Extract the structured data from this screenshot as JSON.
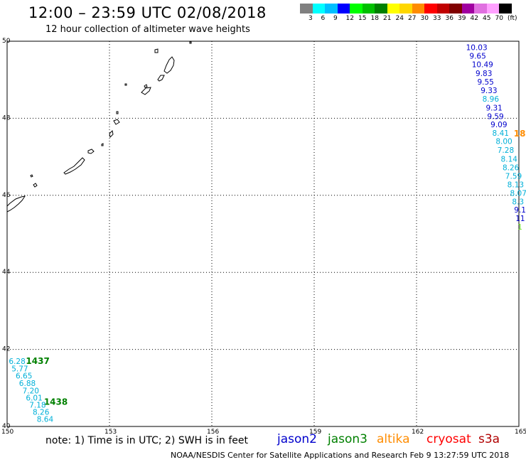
{
  "header": {
    "title": "12:00 – 23:59 UTC 02/08/2018",
    "subtitle": "12 hour collection of altimeter wave heights"
  },
  "color_scale": {
    "colors": [
      "#808080",
      "#00ffff",
      "#00bfff",
      "#0000ff",
      "#00ff00",
      "#00c000",
      "#008000",
      "#ffff00",
      "#ffd700",
      "#ff8c00",
      "#ff0000",
      "#c00000",
      "#800000",
      "#a000a0",
      "#e070e0",
      "#ffa0ff",
      "#000000"
    ],
    "labels": [
      "3",
      "6",
      "9",
      "12",
      "15",
      "18",
      "21",
      "24",
      "27",
      "30",
      "33",
      "36",
      "39",
      "42",
      "45",
      "70",
      "(ft)"
    ]
  },
  "map": {
    "lon_range": [
      150,
      165
    ],
    "lat_range": [
      40,
      50
    ],
    "lon_ticks": [
      "150",
      "153",
      "156",
      "159",
      "162",
      "165"
    ],
    "lat_ticks": [
      "50",
      "48",
      "46",
      "44",
      "42",
      "40"
    ]
  },
  "colors": {
    "jason2": "#0000cc",
    "jason3": "#008000",
    "altika": "#ff8c00",
    "cryosat": "#ff0000",
    "s3a": "#b00000",
    "cyan_value": "#00b0d8",
    "lime_value": "#66dd22"
  },
  "tracks": [
    {
      "lon": 163.45,
      "lat": 49.77,
      "value": "10.03",
      "color": "jason2"
    },
    {
      "lon": 163.55,
      "lat": 49.55,
      "value": "9.65",
      "color": "jason2"
    },
    {
      "lon": 163.62,
      "lat": 49.33,
      "value": "10.49",
      "color": "jason2"
    },
    {
      "lon": 163.73,
      "lat": 49.1,
      "value": "9.83",
      "color": "jason2"
    },
    {
      "lon": 163.78,
      "lat": 48.87,
      "value": "9.55",
      "color": "jason2"
    },
    {
      "lon": 163.88,
      "lat": 48.65,
      "value": "9.33",
      "color": "jason2"
    },
    {
      "lon": 163.93,
      "lat": 48.43,
      "value": "8.96",
      "color": "cyan_value"
    },
    {
      "lon": 164.03,
      "lat": 48.2,
      "value": "9.31",
      "color": "jason2"
    },
    {
      "lon": 164.07,
      "lat": 47.98,
      "value": "9.59",
      "color": "jason2"
    },
    {
      "lon": 164.17,
      "lat": 47.77,
      "value": "9.09",
      "color": "jason2"
    },
    {
      "lon": 164.22,
      "lat": 47.55,
      "value": "8.41",
      "color": "cyan_value"
    },
    {
      "lon": 164.32,
      "lat": 47.33,
      "value": "8.00",
      "color": "cyan_value"
    },
    {
      "lon": 164.37,
      "lat": 47.1,
      "value": "7.28",
      "color": "cyan_value"
    },
    {
      "lon": 164.47,
      "lat": 46.87,
      "value": "8.14",
      "color": "cyan_value"
    },
    {
      "lon": 164.52,
      "lat": 46.65,
      "value": "8.26",
      "color": "cyan_value"
    },
    {
      "lon": 164.6,
      "lat": 46.43,
      "value": "7.59",
      "color": "cyan_value"
    },
    {
      "lon": 164.66,
      "lat": 46.21,
      "value": "8.13",
      "color": "cyan_value"
    },
    {
      "lon": 164.74,
      "lat": 45.99,
      "value": "8.07",
      "color": "cyan_value"
    },
    {
      "lon": 164.8,
      "lat": 45.77,
      "value": "8.3",
      "color": "cyan_value"
    },
    {
      "lon": 164.86,
      "lat": 45.55,
      "value": "9.1",
      "color": "jason2"
    },
    {
      "lon": 164.9,
      "lat": 45.33,
      "value": "11",
      "color": "jason2"
    },
    {
      "lon": 164.96,
      "lat": 45.11,
      "value": "1",
      "color": "lime_value"
    },
    {
      "lon": 150.05,
      "lat": 41.62,
      "value": "6.28",
      "color": "cyan_value"
    },
    {
      "lon": 150.13,
      "lat": 41.43,
      "value": "5.77",
      "color": "cyan_value"
    },
    {
      "lon": 150.25,
      "lat": 41.25,
      "value": "6.65",
      "color": "cyan_value"
    },
    {
      "lon": 150.35,
      "lat": 41.05,
      "value": "6.88",
      "color": "cyan_value"
    },
    {
      "lon": 150.45,
      "lat": 40.86,
      "value": "7.20",
      "color": "cyan_value"
    },
    {
      "lon": 150.55,
      "lat": 40.67,
      "value": "6.01",
      "color": "cyan_value"
    },
    {
      "lon": 150.65,
      "lat": 40.49,
      "value": "7.18",
      "color": "cyan_value"
    },
    {
      "lon": 150.75,
      "lat": 40.3,
      "value": "8.26",
      "color": "cyan_value"
    },
    {
      "lon": 150.87,
      "lat": 40.12,
      "value": "8.64",
      "color": "cyan_value"
    }
  ],
  "time_labels": [
    {
      "lon": 150.55,
      "lat": 41.62,
      "text": "1437",
      "color": "jason3"
    },
    {
      "lon": 151.08,
      "lat": 40.56,
      "text": "1438",
      "color": "jason3"
    },
    {
      "lon": 164.85,
      "lat": 47.53,
      "text": "18",
      "color": "altika"
    }
  ],
  "legend": [
    {
      "label": "jason2",
      "color": "jason2"
    },
    {
      "label": "jason3",
      "color": "jason3"
    },
    {
      "label": "altika",
      "color": "altika"
    },
    {
      "label": "cryosat",
      "color": "cryosat"
    },
    {
      "label": "s3a",
      "color": "s3a"
    }
  ],
  "note": "note: 1) Time is in UTC; 2) SWH is in feet",
  "footer": "NOAA/NESDIS Center for Satellite Applications and Research    Feb  9 13:27:59 UTC 2018"
}
